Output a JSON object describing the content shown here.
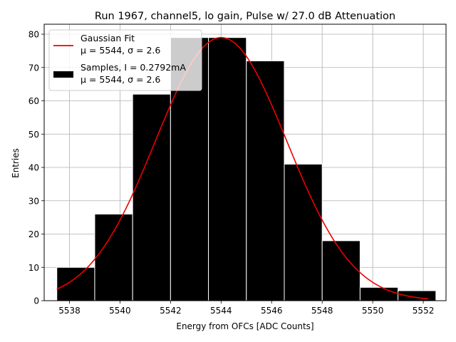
{
  "chart_data": {
    "type": "bar",
    "title": "Run 1967, channel5, lo gain, Pulse w/ 27.0 dB Attenuation",
    "xlabel": "Energy from OFCs [ADC Counts]",
    "ylabel": "Entries",
    "xlim": [
      5537.0,
      5552.9
    ],
    "ylim": [
      0,
      83
    ],
    "grid": true,
    "legend_position": "top-left",
    "x_ticks": [
      5538,
      5540,
      5542,
      5544,
      5546,
      5548,
      5550,
      5552
    ],
    "y_ticks": [
      0,
      10,
      20,
      30,
      40,
      50,
      60,
      70,
      80
    ],
    "histogram": {
      "bin_edges": [
        5537.5,
        5539.0,
        5540.5,
        5542.0,
        5543.5,
        5545.0,
        5546.5,
        5548.0,
        5549.5,
        5551.0,
        5552.5
      ],
      "counts": [
        10,
        26,
        62,
        79,
        79,
        72,
        41,
        18,
        4,
        3
      ],
      "color": "#000000",
      "edge_color": "#ffffff"
    },
    "fit": {
      "type": "gaussian",
      "mu": 5544,
      "sigma": 2.6,
      "amplitude": 79,
      "x_range": [
        5537.5,
        5552.2
      ],
      "color": "#ee0000"
    },
    "legend": [
      {
        "kind": "line",
        "line1": "Gaussian Fit",
        "line2": "μ = 5544, σ = 2.6"
      },
      {
        "kind": "patch",
        "line1": "Samples, I = 0.2792mA",
        "line2": "μ = 5544, σ = 2.6"
      }
    ]
  }
}
